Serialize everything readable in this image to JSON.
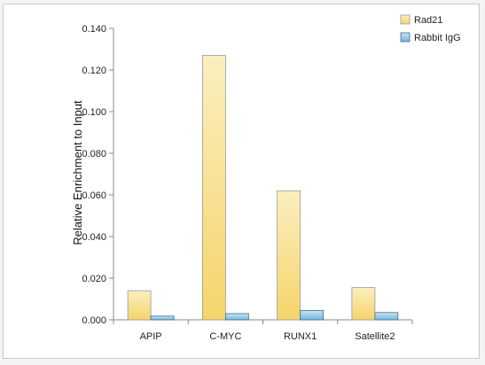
{
  "chart_data": {
    "type": "bar",
    "title": "",
    "xlabel": "",
    "ylabel": "Relative Enrichment to Input",
    "categories": [
      "APIP",
      "C-MYC",
      "RUNX1",
      "Satellite2"
    ],
    "series": [
      {
        "name": "Rad21",
        "values": [
          0.014,
          0.127,
          0.062,
          0.0155
        ],
        "color_top": "#fbefc0",
        "color_bottom": "#f6d46a",
        "stroke": "#9a9a9a"
      },
      {
        "name": "Rabbit IgG",
        "values": [
          0.0018,
          0.003,
          0.0045,
          0.0035
        ],
        "color_top": "#c7e3f3",
        "color_bottom": "#74b6dc",
        "stroke": "#3f6f8f"
      }
    ],
    "ylim": [
      0,
      0.14
    ],
    "yticks": [
      "0.000",
      "0.020",
      "0.040",
      "0.060",
      "0.080",
      "0.100",
      "0.120",
      "0.140"
    ],
    "grid": false,
    "legend_position": "top-right"
  }
}
